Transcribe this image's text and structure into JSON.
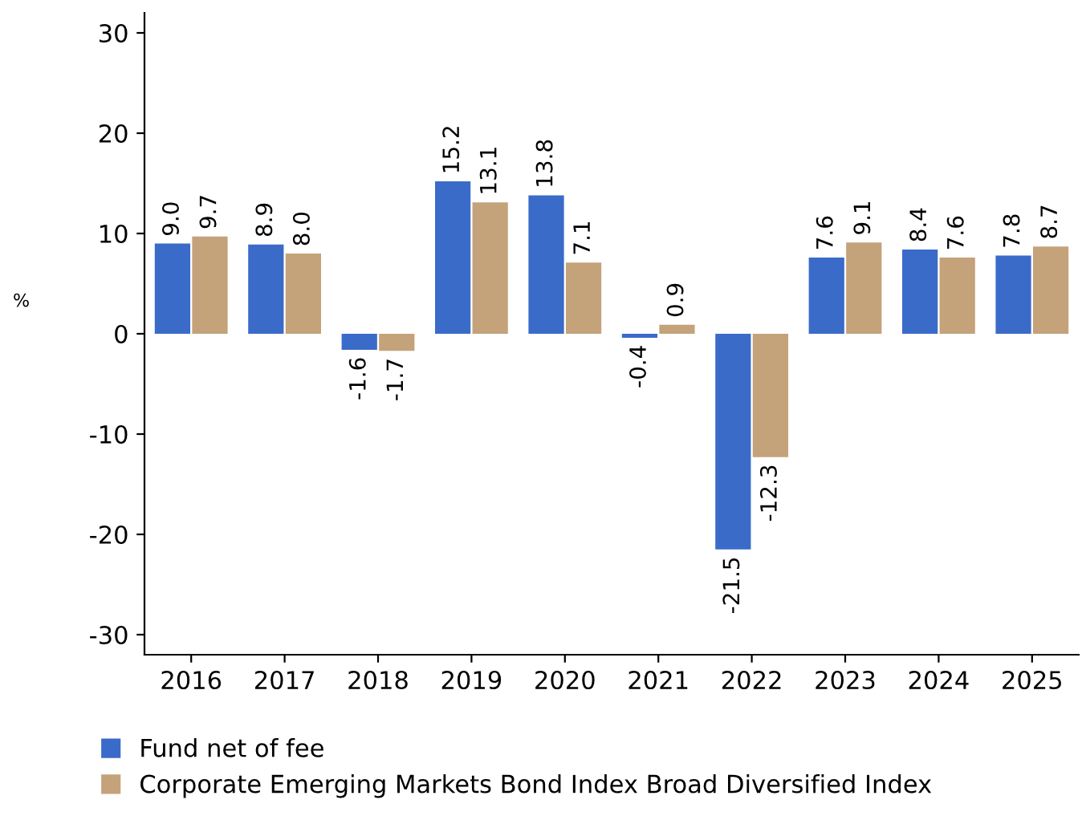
{
  "chart_data": {
    "type": "bar",
    "ylabel": "%",
    "categories": [
      "2016",
      "2017",
      "2018",
      "2019",
      "2020",
      "2021",
      "2022",
      "2023",
      "2024",
      "2025"
    ],
    "series": [
      {
        "name": "Fund net of fee",
        "color": "#3a6bc9",
        "values": [
          9.0,
          8.9,
          -1.6,
          15.2,
          13.8,
          -0.4,
          -21.5,
          7.6,
          8.4,
          7.8
        ],
        "value_labels": [
          "9.0",
          "8.9",
          "-1.6",
          "15.2",
          "13.8",
          "-0.4",
          "-21.5",
          "7.6",
          "8.4",
          "7.8"
        ]
      },
      {
        "name": "Corporate Emerging Markets Bond Index Broad Diversified Index",
        "color": "#c4a27a",
        "values": [
          9.7,
          8.0,
          -1.7,
          13.1,
          7.1,
          0.9,
          -12.3,
          9.1,
          7.6,
          8.7
        ],
        "value_labels": [
          "9.7",
          "8.0",
          "-1.7",
          "13.1",
          "7.1",
          "0.9",
          "-12.3",
          "9.1",
          "7.6",
          "8.7"
        ]
      }
    ],
    "ylim": [
      -32,
      32
    ],
    "yticks": [
      -30,
      -20,
      -10,
      0,
      10,
      20,
      30
    ],
    "grid": false,
    "legend": "bottom"
  }
}
